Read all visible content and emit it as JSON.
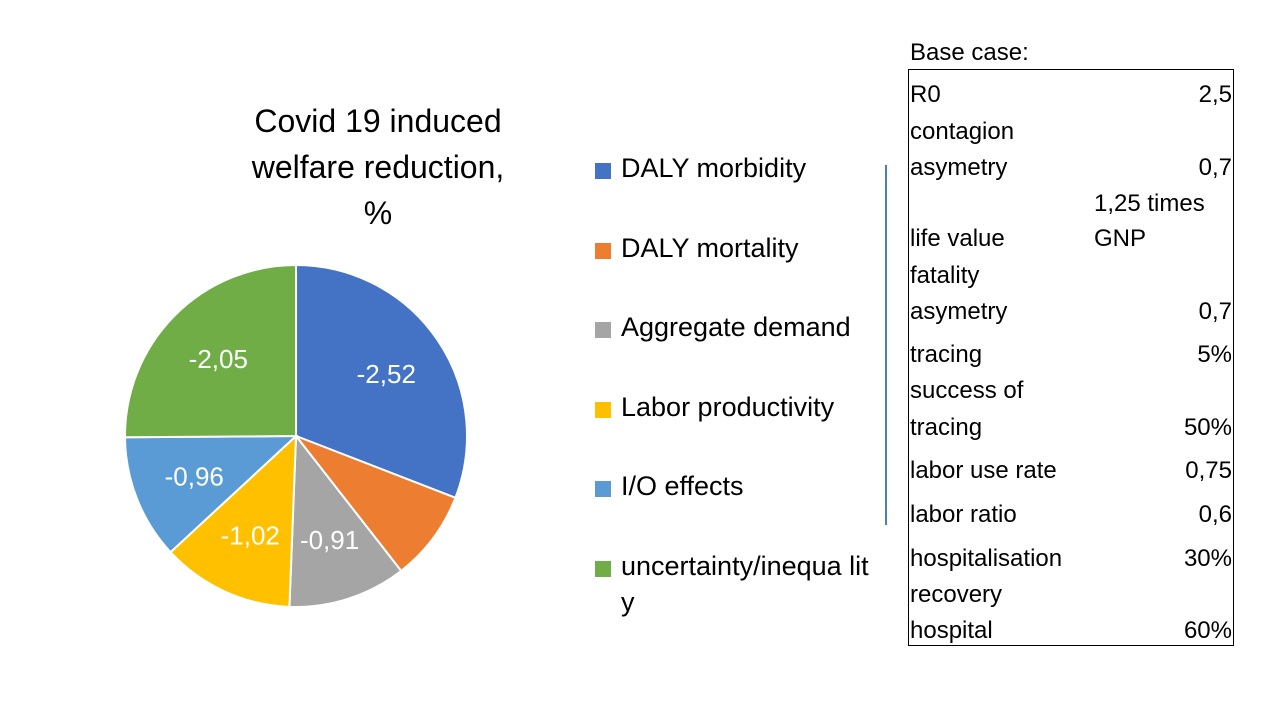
{
  "chart_data": {
    "type": "pie",
    "title": [
      "Covid 19 induced",
      "welfare reduction,",
      "%"
    ],
    "categories": [
      "DALY morbidity",
      "DALY mortality",
      "Aggregate demand",
      "Labor productivity",
      "I/O effects",
      "uncertainty/inequality"
    ],
    "legend_labels": [
      "DALY morbidity",
      "DALY mortality",
      "Aggregate demand",
      "Labor productivity",
      "I/O effects",
      "uncertainty/inequa lity"
    ],
    "values": [
      -2.52,
      -0.7,
      -0.91,
      -1.02,
      -0.96,
      -2.05
    ],
    "data_labels": [
      "-2,52",
      "",
      "-0,91",
      "-1,02",
      "-0,96",
      "-2,05"
    ],
    "colors": [
      "#4472c4",
      "#ed7d31",
      "#a5a5a5",
      "#ffc000",
      "#5b9bd5",
      "#70ad47"
    ],
    "legend_placement": "right"
  },
  "base_case": {
    "title": "Base case:",
    "params": [
      {
        "label": [
          "R0"
        ],
        "value": [
          "2,5"
        ]
      },
      {
        "label": [
          "contagion",
          "asymetry"
        ],
        "value": [
          "0,7"
        ]
      },
      {
        "label": [
          "life value"
        ],
        "value": [
          "1,25 times",
          "GNP"
        ]
      },
      {
        "label": [
          "fatality",
          "asymetry"
        ],
        "value": [
          "0,7"
        ]
      },
      {
        "label": [
          "tracing"
        ],
        "value": [
          "5%"
        ]
      },
      {
        "label": [
          "success of",
          "tracing"
        ],
        "value": [
          "50%"
        ]
      },
      {
        "label": [
          "labor use rate"
        ],
        "value": [
          "0,75"
        ]
      },
      {
        "label": [
          "labor ratio"
        ],
        "value": [
          "0,6"
        ]
      },
      {
        "label": [
          "hospitalisation"
        ],
        "value": [
          "30%"
        ]
      },
      {
        "label": [
          "recovery",
          "hospital"
        ],
        "value": [
          "60%"
        ]
      }
    ]
  }
}
